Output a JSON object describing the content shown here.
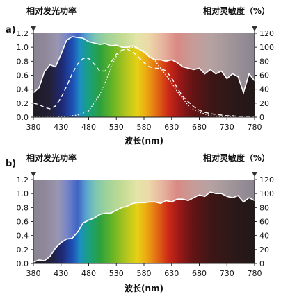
{
  "chart_data": [
    {
      "panel_label": "a)",
      "type": "line",
      "left_title": "相对发光功率",
      "right_title": "相对灵敏度（%）",
      "xlabel": "波长(nm)",
      "xlim": [
        380,
        780
      ],
      "ylim_left": [
        0,
        1.2
      ],
      "ylim_right": [
        0,
        120
      ],
      "x_ticks": [
        "380",
        "430",
        "480",
        "530",
        "580",
        "630",
        "680",
        "730",
        "780"
      ],
      "y_ticks_left": [
        "0.0",
        "0.2",
        "0.4",
        "0.6",
        "0.8",
        "1.0",
        "1.2"
      ],
      "y_ticks_right": [
        "0",
        "20",
        "40",
        "60",
        "80",
        "100",
        "120"
      ],
      "series": [
        {
          "style": "solid",
          "axis": "left",
          "x": [
            380,
            390,
            400,
            410,
            420,
            430,
            440,
            450,
            460,
            470,
            480,
            490,
            500,
            510,
            520,
            530,
            540,
            550,
            560,
            570,
            580,
            590,
            600,
            610,
            620,
            630,
            640,
            650,
            660,
            670,
            680,
            690,
            700,
            710,
            720,
            730,
            740,
            750,
            760,
            770,
            780
          ],
          "y": [
            0.35,
            0.42,
            0.65,
            0.75,
            0.72,
            0.9,
            1.1,
            1.15,
            1.14,
            1.13,
            1.08,
            1.06,
            1.04,
            1.05,
            1.02,
            1.03,
            1.0,
            1.0,
            1.02,
            0.98,
            0.93,
            0.86,
            0.82,
            0.82,
            0.8,
            0.82,
            0.78,
            0.72,
            0.7,
            0.68,
            0.7,
            0.62,
            0.68,
            0.62,
            0.66,
            0.55,
            0.62,
            0.58,
            0.35,
            0.62,
            0.52
          ]
        },
        {
          "style": "dashed",
          "axis": "right",
          "x": [
            380,
            390,
            400,
            410,
            420,
            430,
            440,
            450,
            460,
            470,
            480,
            490,
            500,
            510,
            520,
            530,
            540,
            550,
            560,
            570,
            580,
            590,
            600,
            610,
            620,
            630,
            640,
            650,
            660,
            670,
            680,
            690,
            700,
            710,
            720,
            730,
            740,
            750,
            760,
            770,
            780
          ],
          "y": [
            20,
            18,
            14,
            12,
            16,
            28,
            44,
            62,
            76,
            84,
            84,
            76,
            66,
            66,
            78,
            90,
            96,
            97,
            93,
            86,
            78,
            72,
            70,
            70,
            66,
            56,
            42,
            30,
            22,
            15,
            10,
            7,
            5,
            4,
            3,
            2,
            2,
            1,
            1,
            1,
            0
          ]
        },
        {
          "style": "dotted",
          "axis": "right",
          "x": [
            380,
            400,
            420,
            440,
            460,
            480,
            500,
            510,
            520,
            530,
            540,
            550,
            560,
            570,
            580,
            590,
            600,
            610,
            620,
            630,
            640,
            650,
            660,
            670,
            680,
            700,
            720,
            750,
            780
          ],
          "y": [
            0,
            0,
            0,
            1,
            3,
            9,
            32,
            50,
            70,
            87,
            95,
            99,
            100,
            99,
            95,
            89,
            81,
            70,
            60,
            49,
            37,
            27,
            17,
            11,
            7,
            2,
            1,
            0,
            0
          ]
        }
      ]
    },
    {
      "panel_label": "b)",
      "type": "area",
      "left_title": "相对发光功率",
      "right_title": "相对灵敏度（%）",
      "xlabel": "波长(nm)",
      "xlim": [
        380,
        780
      ],
      "ylim_left": [
        0,
        1.2
      ],
      "ylim_right": [
        0,
        120
      ],
      "x_ticks": [
        "380",
        "430",
        "480",
        "530",
        "580",
        "630",
        "680",
        "730",
        "780"
      ],
      "y_ticks_left": [
        "0.0",
        "0.2",
        "0.4",
        "0.6",
        "0.8",
        "1.0",
        "1.2"
      ],
      "y_ticks_right": [
        "0",
        "20",
        "40",
        "60",
        "80",
        "100",
        "120"
      ],
      "series": [
        {
          "style": "solid",
          "axis": "left",
          "x": [
            380,
            390,
            400,
            410,
            420,
            430,
            440,
            450,
            460,
            470,
            480,
            490,
            500,
            510,
            520,
            530,
            540,
            550,
            560,
            570,
            580,
            590,
            600,
            610,
            620,
            630,
            640,
            650,
            660,
            670,
            680,
            690,
            700,
            710,
            720,
            730,
            740,
            750,
            760,
            770,
            780
          ],
          "y": [
            0.02,
            0.05,
            0.04,
            0.1,
            0.22,
            0.3,
            0.35,
            0.36,
            0.45,
            0.58,
            0.62,
            0.65,
            0.7,
            0.72,
            0.72,
            0.76,
            0.8,
            0.82,
            0.86,
            0.87,
            0.87,
            0.88,
            0.88,
            0.86,
            0.9,
            0.88,
            0.92,
            0.92,
            0.9,
            0.94,
            0.98,
            0.96,
            1.02,
            1.0,
            1.0,
            0.96,
            0.94,
            0.97,
            0.88,
            0.94,
            0.9
          ]
        }
      ]
    }
  ]
}
